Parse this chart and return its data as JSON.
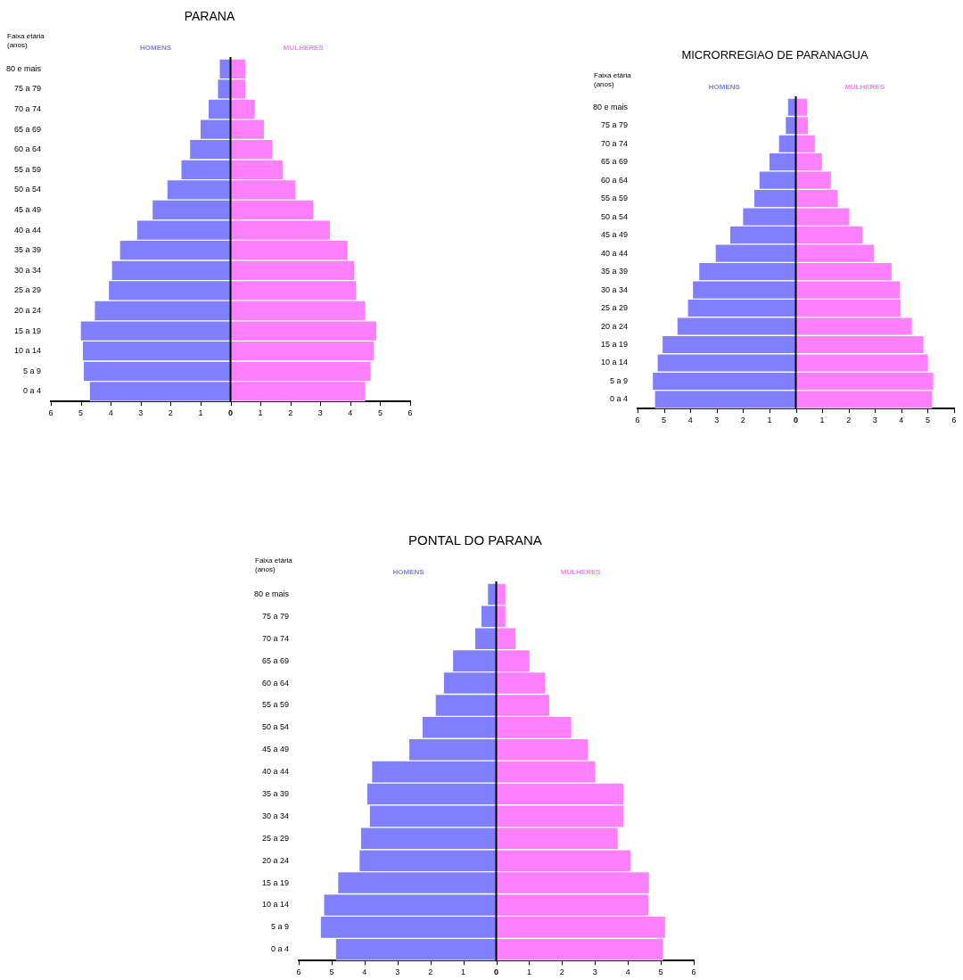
{
  "chart_data": [
    {
      "type": "bar",
      "title": "PARANA",
      "ylabel": "Faixa etária (anos)",
      "orientation": "horizontal",
      "stacked": true,
      "legend": false,
      "grid": false,
      "categories": [
        "80 e mais",
        "75 a 79",
        "70 a 74",
        "65 a 69",
        "60 a 64",
        "55 a 59",
        "50 a 54",
        "45 a 49",
        "40 a 44",
        "35 a 39",
        "30 a 34",
        "25 a 29",
        "20 a 24",
        "15 a 19",
        "10 a 14",
        "5 a 9",
        "0 a 4"
      ],
      "series": [
        {
          "name": "HOMENS",
          "color": "#8080ff",
          "values": [
            -0.36,
            -0.42,
            -0.73,
            -1.0,
            -1.35,
            -1.64,
            -2.11,
            -2.6,
            -3.12,
            -3.69,
            -3.96,
            -4.06,
            -4.53,
            -5.0,
            -4.93,
            -4.9,
            -4.7
          ]
        },
        {
          "name": "MULHERES",
          "color": "#ff80ff",
          "values": [
            0.5,
            0.5,
            0.81,
            1.12,
            1.4,
            1.74,
            2.17,
            2.76,
            3.32,
            3.91,
            4.13,
            4.19,
            4.5,
            4.87,
            4.78,
            4.68,
            4.5
          ]
        }
      ],
      "ref_lines": [
        {
          "axis": "x",
          "value": 0,
          "color": "#000000"
        }
      ],
      "xlim": [
        -6,
        6
      ],
      "xticks": [
        {
          "value": -6,
          "label": "6"
        },
        {
          "value": -5,
          "label": "5"
        },
        {
          "value": -4,
          "label": "4"
        },
        {
          "value": -3,
          "label": "3"
        },
        {
          "value": -2,
          "label": "2"
        },
        {
          "value": -1,
          "label": "1"
        },
        0,
        1,
        2,
        3,
        4,
        5,
        6
      ]
    },
    {
      "type": "bar",
      "title": "MICRORREGIAO DE PARANAGUA",
      "ylabel": "Faixa etária (anos)",
      "orientation": "horizontal",
      "stacked": true,
      "legend": false,
      "grid": false,
      "categories": [
        "80 e mais",
        "75 a 79",
        "70 a 74",
        "65 a 69",
        "60 a 64",
        "55 a 59",
        "50 a 54",
        "45 a 49",
        "40 a 44",
        "35 a 39",
        "30 a 34",
        "25 a 29",
        "20 a 24",
        "15 a 19",
        "10 a 14",
        "5 a 9",
        "0 a 4"
      ],
      "series": [
        {
          "name": "HOMENS",
          "color": "#8080ff",
          "values": [
            -0.3,
            -0.38,
            -0.64,
            -1.0,
            -1.38,
            -1.57,
            -2.0,
            -2.49,
            -3.04,
            -3.66,
            -3.9,
            -4.09,
            -4.49,
            -5.05,
            -5.24,
            -5.42,
            -5.34
          ]
        },
        {
          "name": "MULHERES",
          "color": "#ff80ff",
          "values": [
            0.42,
            0.46,
            0.72,
            0.99,
            1.33,
            1.59,
            2.03,
            2.53,
            2.97,
            3.63,
            3.94,
            3.97,
            4.4,
            4.84,
            5.01,
            5.21,
            5.17
          ]
        }
      ],
      "ref_lines": [
        {
          "axis": "x",
          "value": 0,
          "color": "#000000"
        }
      ],
      "xlim": [
        -6,
        6
      ],
      "xticks": [
        {
          "value": -6,
          "label": "6"
        },
        {
          "value": -5,
          "label": "5"
        },
        {
          "value": -4,
          "label": "4"
        },
        {
          "value": -3,
          "label": "3"
        },
        {
          "value": -2,
          "label": "2"
        },
        {
          "value": -1,
          "label": "1"
        },
        0,
        1,
        2,
        3,
        4,
        5,
        6
      ]
    },
    {
      "type": "bar",
      "title": "PONTAL DO PARANA",
      "ylabel": "Faixa etária (anos)",
      "orientation": "horizontal",
      "stacked": true,
      "legend": false,
      "grid": false,
      "categories": [
        "80 e mais",
        "75 a 79",
        "70 a 74",
        "65 a 69",
        "60 a 64",
        "55 a 59",
        "50 a 54",
        "45 a 49",
        "40 a 44",
        "35 a 39",
        "30 a 34",
        "25 a 29",
        "20 a 24",
        "15 a 19",
        "10 a 14",
        "5 a 9",
        "0 a 4"
      ],
      "series": [
        {
          "name": "HOMENS",
          "color": "#8080ff",
          "values": [
            -0.25,
            -0.45,
            -0.64,
            -1.31,
            -1.59,
            -1.84,
            -2.24,
            -2.64,
            -3.77,
            -3.92,
            -3.84,
            -4.11,
            -4.15,
            -4.8,
            -5.23,
            -5.33,
            -4.87
          ]
        },
        {
          "name": "MULHERES",
          "color": "#ff80ff",
          "values": [
            0.28,
            0.28,
            0.59,
            1.01,
            1.49,
            1.61,
            2.28,
            2.79,
            3.01,
            3.86,
            3.86,
            3.69,
            4.08,
            4.64,
            4.62,
            5.13,
            5.07
          ]
        }
      ],
      "ref_lines": [
        {
          "axis": "x",
          "value": 0,
          "color": "#000000"
        }
      ],
      "xlim": [
        -6,
        6
      ],
      "xticks": [
        {
          "value": -6,
          "label": "6"
        },
        {
          "value": -5,
          "label": "5"
        },
        {
          "value": -4,
          "label": "4"
        },
        {
          "value": -3,
          "label": "3"
        },
        {
          "value": -2,
          "label": "2"
        },
        {
          "value": -1,
          "label": "1"
        },
        0,
        1,
        2,
        3,
        4,
        5,
        6
      ]
    }
  ]
}
